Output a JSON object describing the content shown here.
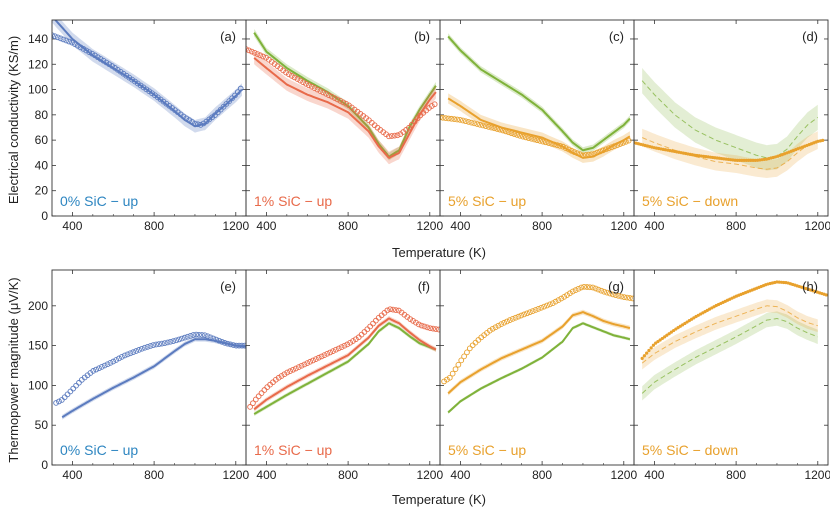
{
  "figure": {
    "x_axis_label": "Temperature (K)",
    "row_y_labels": [
      "Electrical conductivity (KS/m)",
      "Thermopower magnitude (μV/K)"
    ]
  },
  "colors": {
    "blue": "#5b7bbf",
    "blue_text": "#2e86c1",
    "red": "#e86a4a",
    "green": "#7fb23a",
    "orange": "#e8a12d"
  },
  "chart_data": [
    {
      "type": "line",
      "panel": "(a)",
      "annotation": "0% SiC − up",
      "annotation_color": "blue_text",
      "xlim": [
        300,
        1250
      ],
      "ylim": [
        0,
        155
      ],
      "xticks": [
        400,
        800,
        1200
      ],
      "yticks": [
        0,
        20,
        40,
        60,
        80,
        100,
        120,
        140
      ],
      "series": [
        {
          "name": "model",
          "style": "band",
          "color": "blue",
          "x": [
            300,
            400,
            500,
            600,
            700,
            800,
            900,
            950,
            1000,
            1050,
            1100,
            1150,
            1200,
            1230
          ],
          "y": [
            158,
            140,
            127,
            117,
            107,
            96,
            83,
            76,
            71,
            73,
            81,
            88,
            95,
            100
          ],
          "band": 5
        },
        {
          "name": "data",
          "style": "circle",
          "color": "blue",
          "x": [
            300,
            400,
            500,
            600,
            700,
            800,
            900,
            950,
            1000,
            1030,
            1050,
            1100,
            1150,
            1200,
            1230
          ],
          "y": [
            143,
            137,
            128,
            118,
            107,
            96,
            84,
            78,
            73,
            72,
            74,
            80,
            88,
            96,
            102
          ]
        }
      ]
    },
    {
      "type": "line",
      "panel": "(b)",
      "annotation": "1% SiC − up",
      "annotation_color": "red",
      "xlim": [
        300,
        1250
      ],
      "ylim": [
        0,
        155
      ],
      "xticks": [
        400,
        800,
        1200
      ],
      "yticks": [
        0,
        20,
        40,
        60,
        80,
        100,
        120,
        140
      ],
      "series": [
        {
          "name": "model-green",
          "style": "band",
          "color": "green",
          "x": [
            340,
            400,
            500,
            600,
            700,
            800,
            900,
            950,
            1000,
            1050,
            1100,
            1150,
            1200,
            1230
          ],
          "y": [
            145,
            130,
            117,
            107,
            98,
            87,
            70,
            57,
            47,
            52,
            70,
            84,
            96,
            103
          ],
          "band": 3
        },
        {
          "name": "model-red",
          "style": "band",
          "color": "red",
          "x": [
            340,
            400,
            500,
            600,
            700,
            800,
            900,
            950,
            1000,
            1050,
            1100,
            1150,
            1200,
            1230
          ],
          "y": [
            125,
            117,
            104,
            96,
            90,
            82,
            67,
            55,
            46,
            50,
            65,
            80,
            92,
            98
          ],
          "band": 5
        },
        {
          "name": "data",
          "style": "circle",
          "color": "red",
          "x": [
            300,
            400,
            500,
            600,
            700,
            800,
            900,
            950,
            1000,
            1050,
            1100,
            1150,
            1200,
            1230
          ],
          "y": [
            132,
            125,
            113,
            104,
            96,
            88,
            76,
            69,
            63,
            64,
            70,
            79,
            86,
            89
          ]
        }
      ]
    },
    {
      "type": "line",
      "panel": "(c)",
      "annotation": "5% SiC − up",
      "annotation_color": "orange",
      "xlim": [
        300,
        1250
      ],
      "ylim": [
        0,
        155
      ],
      "xticks": [
        400,
        800,
        1200
      ],
      "yticks": [
        0,
        20,
        40,
        60,
        80,
        100,
        120,
        140
      ],
      "series": [
        {
          "name": "model-green",
          "style": "band",
          "color": "green",
          "x": [
            340,
            400,
            500,
            600,
            700,
            800,
            900,
            950,
            1000,
            1050,
            1100,
            1150,
            1200,
            1230
          ],
          "y": [
            142,
            131,
            116,
            106,
            96,
            84,
            67,
            58,
            52,
            54,
            60,
            66,
            72,
            77
          ],
          "band": 2.5
        },
        {
          "name": "model-orange",
          "style": "band",
          "color": "orange",
          "x": [
            340,
            400,
            500,
            600,
            700,
            800,
            900,
            950,
            1000,
            1050,
            1100,
            1150,
            1200,
            1230
          ],
          "y": [
            93,
            87,
            76,
            70,
            66,
            62,
            55,
            50,
            46,
            47,
            51,
            56,
            60,
            63
          ],
          "band": 4
        },
        {
          "name": "data",
          "style": "circle",
          "color": "orange",
          "x": [
            300,
            400,
            500,
            600,
            700,
            800,
            900,
            950,
            1000,
            1050,
            1100,
            1150,
            1200,
            1230
          ],
          "y": [
            78,
            76,
            72,
            68,
            63,
            59,
            55,
            51,
            48,
            49,
            52,
            55,
            58,
            60
          ]
        }
      ]
    },
    {
      "type": "line",
      "panel": "(d)",
      "annotation": "5% SiC − down",
      "annotation_color": "orange",
      "xlim": [
        300,
        1250
      ],
      "ylim": [
        0,
        155
      ],
      "xticks": [
        400,
        800,
        1200
      ],
      "yticks": [
        0,
        20,
        40,
        60,
        80,
        100,
        120,
        140
      ],
      "series": [
        {
          "name": "model-green",
          "style": "dashed-band",
          "color": "green",
          "x": [
            340,
            400,
            500,
            600,
            700,
            800,
            900,
            950,
            1000,
            1050,
            1100,
            1150,
            1200
          ],
          "y": [
            107,
            96,
            80,
            68,
            60,
            54,
            48,
            46,
            47,
            53,
            63,
            72,
            78
          ],
          "band": 10
        },
        {
          "name": "model-orange",
          "style": "dashed-band",
          "color": "orange",
          "x": [
            340,
            400,
            500,
            600,
            700,
            800,
            900,
            950,
            1000,
            1050,
            1100,
            1150,
            1200
          ],
          "y": [
            62,
            58,
            52,
            47,
            43,
            41,
            38,
            37,
            38,
            43,
            50,
            56,
            60
          ],
          "band": 7
        },
        {
          "name": "data",
          "style": "dots",
          "color": "orange",
          "x": [
            300,
            400,
            500,
            600,
            700,
            800,
            900,
            950,
            1000,
            1050,
            1100,
            1150,
            1200,
            1230
          ],
          "y": [
            58,
            54,
            51,
            48,
            46,
            44,
            44,
            45,
            47,
            50,
            53,
            56,
            59,
            60
          ]
        }
      ]
    },
    {
      "type": "line",
      "panel": "(e)",
      "annotation": "0% SiC − up",
      "annotation_color": "blue_text",
      "xlim": [
        300,
        1250
      ],
      "ylim": [
        0,
        245
      ],
      "xticks": [
        400,
        800,
        1200
      ],
      "yticks": [
        0,
        50,
        100,
        150,
        200
      ],
      "series": [
        {
          "name": "model",
          "style": "band",
          "color": "blue",
          "x": [
            350,
            400,
            500,
            600,
            700,
            800,
            900,
            950,
            1000,
            1050,
            1100,
            1150,
            1200,
            1250
          ],
          "y": [
            60,
            68,
            83,
            97,
            110,
            124,
            143,
            152,
            158,
            158,
            156,
            153,
            150,
            149
          ],
          "band": 3
        },
        {
          "name": "data",
          "style": "circle",
          "color": "blue",
          "x": [
            320,
            350,
            400,
            450,
            500,
            550,
            600,
            650,
            700,
            750,
            800,
            850,
            900,
            950,
            1000,
            1050,
            1100,
            1150,
            1200,
            1250
          ],
          "y": [
            78,
            82,
            95,
            108,
            118,
            124,
            130,
            137,
            142,
            147,
            151,
            153,
            156,
            160,
            164,
            163,
            158,
            153,
            150,
            150
          ]
        }
      ]
    },
    {
      "type": "line",
      "panel": "(f)",
      "annotation": "1% SiC − up",
      "annotation_color": "red",
      "xlim": [
        300,
        1250
      ],
      "ylim": [
        0,
        245
      ],
      "xticks": [
        400,
        800,
        1200
      ],
      "yticks": [
        0,
        50,
        100,
        150,
        200
      ],
      "series": [
        {
          "name": "model-green",
          "style": "band",
          "color": "green",
          "x": [
            340,
            400,
            500,
            600,
            700,
            800,
            900,
            950,
            1000,
            1050,
            1100,
            1150,
            1200,
            1230
          ],
          "y": [
            64,
            73,
            88,
            102,
            116,
            130,
            152,
            168,
            178,
            172,
            162,
            153,
            148,
            145
          ],
          "band": 2.5
        },
        {
          "name": "model-red",
          "style": "band",
          "color": "red",
          "x": [
            340,
            400,
            500,
            600,
            700,
            800,
            900,
            950,
            1000,
            1050,
            1100,
            1150,
            1200,
            1230
          ],
          "y": [
            70,
            82,
            98,
            112,
            125,
            138,
            160,
            175,
            184,
            178,
            167,
            157,
            149,
            145
          ],
          "band": 3
        },
        {
          "name": "data",
          "style": "circle",
          "color": "red",
          "x": [
            320,
            350,
            400,
            450,
            500,
            550,
            600,
            650,
            700,
            750,
            800,
            850,
            900,
            950,
            1000,
            1050,
            1100,
            1150,
            1200,
            1250
          ],
          "y": [
            73,
            83,
            97,
            108,
            116,
            122,
            128,
            134,
            140,
            146,
            152,
            160,
            172,
            185,
            196,
            194,
            184,
            176,
            172,
            170
          ]
        }
      ]
    },
    {
      "type": "line",
      "panel": "(g)",
      "annotation": "5% SiC − up",
      "annotation_color": "orange",
      "xlim": [
        300,
        1250
      ],
      "ylim": [
        0,
        245
      ],
      "xticks": [
        400,
        800,
        1200
      ],
      "yticks": [
        0,
        50,
        100,
        150,
        200
      ],
      "series": [
        {
          "name": "model-green",
          "style": "band",
          "color": "green",
          "x": [
            340,
            400,
            500,
            600,
            700,
            800,
            900,
            950,
            1000,
            1050,
            1100,
            1150,
            1200,
            1230
          ],
          "y": [
            66,
            80,
            96,
            109,
            121,
            135,
            155,
            172,
            178,
            173,
            168,
            163,
            160,
            158
          ],
          "band": 2
        },
        {
          "name": "model-orange",
          "style": "band",
          "color": "orange",
          "x": [
            340,
            400,
            500,
            600,
            700,
            800,
            900,
            950,
            1000,
            1050,
            1100,
            1150,
            1200,
            1230
          ],
          "y": [
            90,
            104,
            120,
            134,
            145,
            156,
            174,
            188,
            192,
            187,
            181,
            177,
            174,
            172
          ],
          "band": 3
        },
        {
          "name": "data",
          "style": "circle",
          "color": "orange",
          "x": [
            320,
            350,
            400,
            450,
            500,
            550,
            600,
            650,
            700,
            750,
            800,
            850,
            900,
            950,
            1000,
            1050,
            1100,
            1150,
            1200,
            1250
          ],
          "y": [
            105,
            110,
            130,
            148,
            160,
            170,
            177,
            183,
            188,
            193,
            198,
            203,
            210,
            218,
            224,
            223,
            218,
            214,
            211,
            209
          ]
        }
      ]
    },
    {
      "type": "line",
      "panel": "(h)",
      "annotation": "5% SiC − down",
      "annotation_color": "orange",
      "xlim": [
        300,
        1250
      ],
      "ylim": [
        0,
        245
      ],
      "xticks": [
        400,
        800,
        1200
      ],
      "yticks": [
        0,
        50,
        100,
        150,
        200
      ],
      "series": [
        {
          "name": "model-green",
          "style": "dashed-band",
          "color": "green",
          "x": [
            340,
            400,
            500,
            600,
            700,
            800,
            900,
            950,
            1000,
            1050,
            1100,
            1150,
            1200
          ],
          "y": [
            90,
            104,
            120,
            135,
            148,
            161,
            175,
            182,
            184,
            180,
            172,
            166,
            161
          ],
          "band": 9
        },
        {
          "name": "model-orange",
          "style": "dashed-band",
          "color": "orange",
          "x": [
            340,
            400,
            500,
            600,
            700,
            800,
            900,
            950,
            1000,
            1050,
            1100,
            1150,
            1200
          ],
          "y": [
            128,
            140,
            155,
            167,
            178,
            187,
            196,
            200,
            199,
            193,
            185,
            179,
            175
          ],
          "band": 8
        },
        {
          "name": "data",
          "style": "dots",
          "color": "orange",
          "x": [
            340,
            400,
            500,
            600,
            700,
            800,
            900,
            950,
            1000,
            1050,
            1100,
            1150,
            1200,
            1250
          ],
          "y": [
            134,
            152,
            170,
            186,
            200,
            212,
            222,
            227,
            230,
            229,
            225,
            221,
            217,
            213
          ]
        }
      ]
    }
  ]
}
